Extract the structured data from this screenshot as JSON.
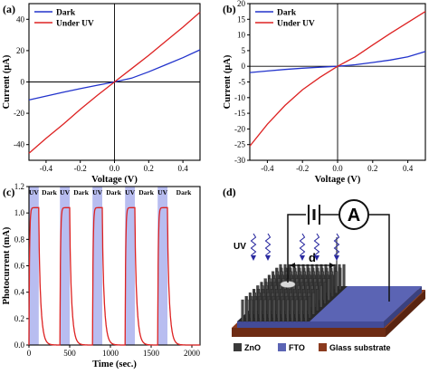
{
  "colors": {
    "dark": "#2233cc",
    "uv": "#dd2222",
    "band": "#b8bdf0",
    "zno": "#3a3a3a",
    "fto": "#5b64b4",
    "glass": "#8b3a1e",
    "arrow": "#2a2aa0"
  },
  "chart_data": [
    {
      "panel": "(a)",
      "type": "line",
      "xlabel": "Voltage (V)",
      "ylabel": "Current (μA)",
      "xlim": [
        -0.5,
        0.5
      ],
      "ylim": [
        -50,
        50
      ],
      "xticks": [
        -0.4,
        -0.2,
        0.0,
        0.2,
        0.4
      ],
      "xtick_labels": [
        "-0.4",
        "-0.2",
        "0.0",
        "0.2",
        "0.4"
      ],
      "yticks": [
        -40,
        -20,
        0,
        20,
        40
      ],
      "ytick_labels": [
        "-40",
        "-20",
        "0",
        "20",
        "40"
      ],
      "legend_position": "top-left",
      "grid": false,
      "series": [
        {
          "name": "Dark",
          "color": "#2233cc",
          "x": [
            -0.5,
            -0.4,
            -0.3,
            -0.2,
            -0.1,
            0,
            0.1,
            0.2,
            0.3,
            0.4,
            0.5
          ],
          "y": [
            -11.5,
            -9,
            -6.6,
            -4.3,
            -2.1,
            0,
            2.4,
            6.5,
            11,
            15.5,
            20.5
          ]
        },
        {
          "name": "Under UV",
          "color": "#dd2222",
          "x": [
            -0.5,
            -0.4,
            -0.3,
            -0.2,
            -0.1,
            0,
            0.1,
            0.2,
            0.3,
            0.4,
            0.5
          ],
          "y": [
            -45.5,
            -36,
            -27,
            -17.5,
            -8.5,
            0,
            8.5,
            17,
            26,
            35,
            44.5
          ]
        }
      ]
    },
    {
      "panel": "(b)",
      "type": "line",
      "xlabel": "Voltage (V)",
      "ylabel": "Current (μA)",
      "xlim": [
        -0.5,
        0.5
      ],
      "ylim": [
        -30,
        20
      ],
      "xticks": [
        -0.4,
        -0.2,
        0.0,
        0.2,
        0.4
      ],
      "xtick_labels": [
        "-0.4",
        "-0.2",
        "0.0",
        "0.2",
        "0.4"
      ],
      "yticks": [
        -30,
        -25,
        -20,
        -15,
        -10,
        -5,
        0,
        5,
        10,
        15,
        20
      ],
      "ytick_labels": [
        "-30",
        "-25",
        "-20",
        "-15",
        "-10",
        "-5",
        "0",
        "5",
        "10",
        "15",
        "20"
      ],
      "legend_position": "top-left",
      "grid": false,
      "series": [
        {
          "name": "Dark",
          "color": "#2233cc",
          "x": [
            -0.5,
            -0.4,
            -0.3,
            -0.2,
            -0.1,
            0,
            0.1,
            0.2,
            0.3,
            0.4,
            0.5
          ],
          "y": [
            -2,
            -1.5,
            -1,
            -0.6,
            -0.3,
            0,
            0.5,
            1.2,
            2,
            3,
            4.7
          ]
        },
        {
          "name": "Under UV",
          "color": "#dd2222",
          "x": [
            -0.5,
            -0.4,
            -0.3,
            -0.2,
            -0.1,
            0,
            0.1,
            0.2,
            0.3,
            0.4,
            0.5
          ],
          "y": [
            -25.5,
            -18.5,
            -12.5,
            -7.5,
            -3.5,
            0,
            3,
            6.8,
            10.5,
            14,
            17.5
          ]
        }
      ]
    },
    {
      "panel": "(c)",
      "type": "line",
      "xlabel": "Time (sec.)",
      "ylabel": "Photocurrent (mA)",
      "xlim": [
        0,
        2100
      ],
      "ylim": [
        0,
        1.2
      ],
      "xticks": [
        0,
        500,
        1000,
        1500,
        2000
      ],
      "xtick_labels": [
        "0",
        "500",
        "1000",
        "1500",
        "2000"
      ],
      "yticks": [
        0,
        0.2,
        0.4,
        0.6,
        0.8,
        1.0,
        1.2
      ],
      "ytick_labels": [
        "0.0",
        "0.2",
        "0.4",
        "0.6",
        "0.8",
        "1.0",
        "1.2"
      ],
      "band_labels": [
        "UV",
        "Dark",
        "UV",
        "Dark",
        "UV",
        "Dark",
        "UV",
        "Dark",
        "UV",
        "Dark"
      ],
      "uv_intervals": [
        [
          0,
          120
        ],
        [
          380,
          500
        ],
        [
          780,
          900
        ],
        [
          1180,
          1300
        ],
        [
          1580,
          1700
        ]
      ],
      "peak": 1.04,
      "color": "#dd2222",
      "grid": false
    }
  ],
  "panel_labels": {
    "a": "(a)",
    "b": "(b)",
    "c": "(c)",
    "d": "(d)"
  },
  "schematic": {
    "uv_label": "UV",
    "d_label": "d",
    "meter_label": "A",
    "legend": [
      "ZnO",
      "FTO",
      "Glass substrate"
    ]
  }
}
